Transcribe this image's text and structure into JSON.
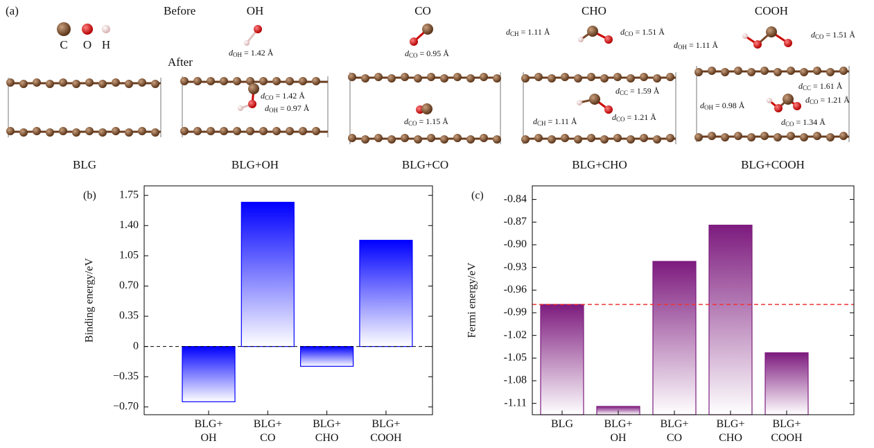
{
  "panel_a": {
    "label": "(a)",
    "before": "Before",
    "after": "After",
    "legend": [
      "C",
      "O",
      "H"
    ],
    "headers": [
      "OH",
      "CO",
      "CHO",
      "COOH"
    ],
    "captions": [
      "BLG",
      "BLG+OH",
      "BLG+CO",
      "BLG+CHO",
      "BLG+COOH"
    ],
    "annotations": [
      [
        "d",
        "OH",
        " = 1.42 Å"
      ],
      [
        "d",
        "CO",
        " = 0.95 Å"
      ],
      [
        "d",
        "CH",
        " = 1.11 Å"
      ],
      [
        "d",
        "CO",
        " = 1.51 Å"
      ],
      [
        "d",
        "CO",
        " = 1.51 Å"
      ],
      [
        "d",
        "OH",
        " = 1.11 Å"
      ],
      [
        "d",
        "CO",
        " = 1.42 Å"
      ],
      [
        "d",
        "OH",
        " = 0.97 Å"
      ],
      [
        "d",
        "CO",
        " = 1.15 Å"
      ],
      [
        "d",
        "CC",
        " = 1.59 Å"
      ],
      [
        "d",
        "CH",
        " = 1.11 Å"
      ],
      [
        "d",
        "CO",
        " = 1.21 Å"
      ],
      [
        "d",
        "CC",
        " = 1.61 Å"
      ],
      [
        "d",
        "OH",
        " = 0.98 Å"
      ],
      [
        "d",
        "CO",
        " = 1.21 Å"
      ],
      [
        "d",
        "CO",
        " = 1.34 Å"
      ]
    ]
  },
  "chart_data": [
    {
      "type": "bar",
      "panel_label": "(b)",
      "ylabel": "Binding energy/eV",
      "categories": [
        "BLG+\nOH",
        "BLG+\nCO",
        "BLG+\nCHO",
        "BLG+\nCOOH"
      ],
      "values": [
        -0.64,
        1.67,
        -0.23,
        1.23
      ],
      "color": "#0000ff",
      "ylim": [
        -0.79,
        1.86
      ],
      "yticks": [
        1.75,
        {
          "value": 1.4,
          "label": "1.40"
        },
        1.05,
        {
          "value": 0.7,
          "label": "0.70"
        },
        0.35,
        0,
        {
          "value": -0.35,
          "label": "−0.35"
        },
        {
          "value": -0.7,
          "label": "−0.70"
        }
      ],
      "zero_line": true
    },
    {
      "type": "bar",
      "panel_label": "(c)",
      "ylabel": "Fermi energy/eV",
      "categories": [
        "BLG",
        "BLG+\nOH",
        "BLG+\nCO",
        "BLG+\nCHO",
        "BLG+\nCOOH"
      ],
      "values": [
        -0.979,
        -1.114,
        -0.922,
        -0.874,
        -1.043
      ],
      "color": "#7d1b7e",
      "ylim": [
        -1.125,
        -0.822
      ],
      "yticks": [
        -0.84,
        -0.87,
        {
          "value": -0.9,
          "label": "-0.90"
        },
        -0.93,
        -0.96,
        -0.99,
        -1.02,
        -1.05,
        -1.08,
        -1.11
      ],
      "reference_line": {
        "value": -0.979,
        "color": "#ee3333"
      }
    }
  ]
}
